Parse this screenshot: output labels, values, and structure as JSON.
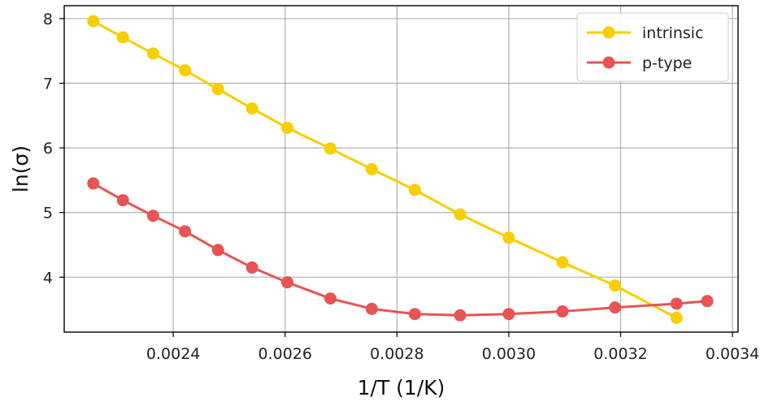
{
  "chart_data": {
    "type": "line",
    "title": "",
    "xlabel": "1/T (1/K)",
    "ylabel": "ln(σ)",
    "xlim": [
      0.002205,
      0.00341
    ],
    "ylim": [
      3.15,
      8.2
    ],
    "xticks": [
      "0.0024",
      "0.0026",
      "0.0028",
      "0.0030",
      "0.0032",
      "0.0034"
    ],
    "yticks": [
      "4",
      "5",
      "6",
      "7",
      "8"
    ],
    "grid": true,
    "legend_position": "top-right",
    "series": [
      {
        "name": "intrinsic",
        "color": "#f7ce00",
        "x": [
          0.002257,
          0.00231,
          0.002364,
          0.002421,
          0.00248,
          0.002541,
          0.002604,
          0.002681,
          0.002755,
          0.002832,
          0.002913,
          0.003,
          0.003096,
          0.00319,
          0.0033
        ],
        "y": [
          7.96,
          7.71,
          7.46,
          7.2,
          6.91,
          6.61,
          6.31,
          5.99,
          5.67,
          5.35,
          4.97,
          4.61,
          4.23,
          3.87,
          3.37
        ]
      },
      {
        "name": "p-type",
        "color": "#e65454",
        "x": [
          0.002257,
          0.00231,
          0.002364,
          0.002421,
          0.00248,
          0.002541,
          0.002604,
          0.002681,
          0.002755,
          0.002832,
          0.002913,
          0.003,
          0.003096,
          0.00319,
          0.0033,
          0.003355
        ],
        "y": [
          5.45,
          5.19,
          4.95,
          4.71,
          4.42,
          4.15,
          3.92,
          3.67,
          3.51,
          3.43,
          3.41,
          3.43,
          3.47,
          3.53,
          3.59,
          3.63
        ]
      }
    ]
  }
}
